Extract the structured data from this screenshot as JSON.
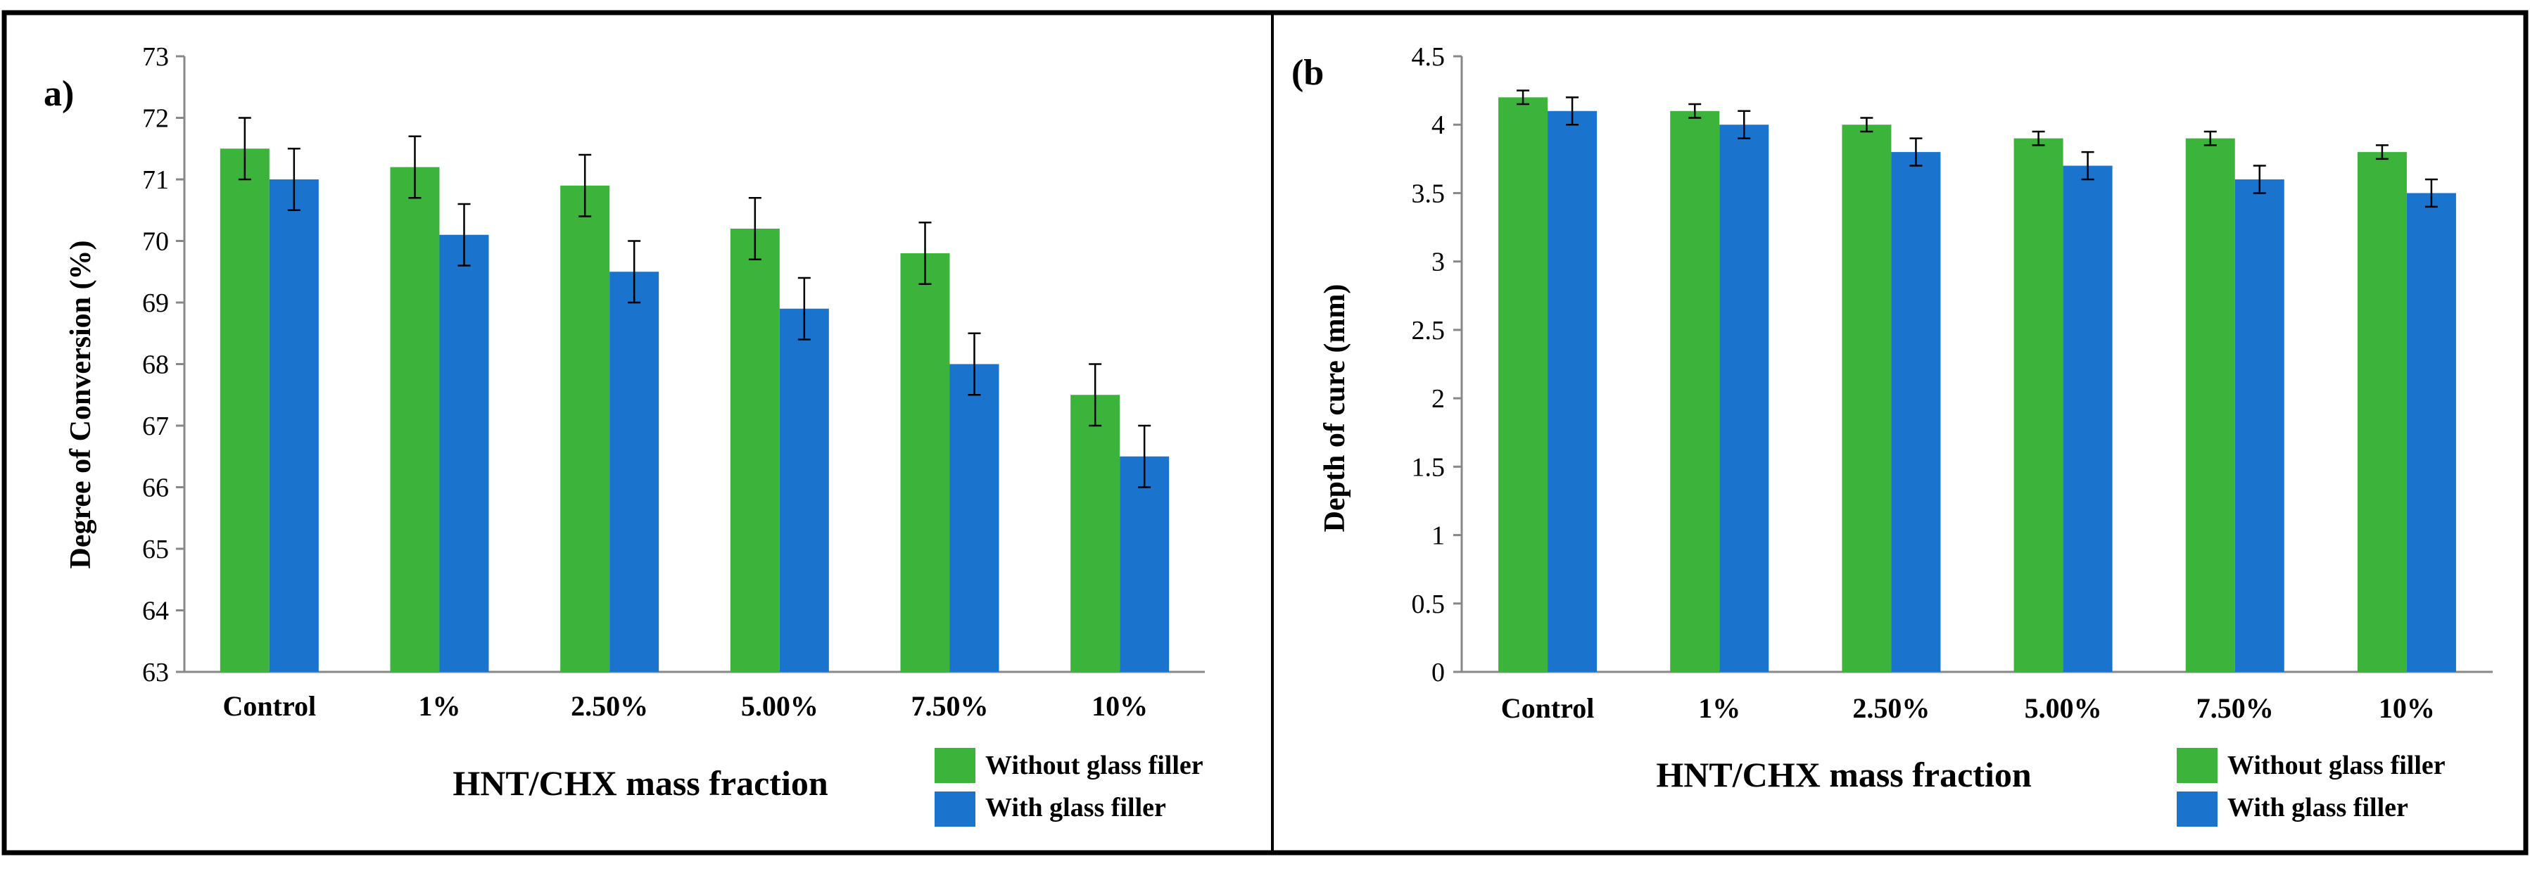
{
  "chart_data": [
    {
      "type": "bar",
      "panel_label": "a)",
      "categories": [
        "Control",
        "1%",
        "2.50%",
        "5.00%",
        "7.50%",
        "10%"
      ],
      "series": [
        {
          "name": "Without glass filler",
          "color": "#3cb43c",
          "values": [
            71.5,
            71.2,
            70.9,
            70.2,
            69.8,
            67.5
          ],
          "errors": [
            0.5,
            0.5,
            0.5,
            0.5,
            0.5,
            0.5
          ]
        },
        {
          "name": "With glass filler",
          "color": "#1a73cc",
          "values": [
            71.0,
            70.1,
            69.5,
            68.9,
            68.0,
            66.5
          ],
          "errors": [
            0.5,
            0.5,
            0.5,
            0.5,
            0.5,
            0.5
          ]
        }
      ],
      "xlabel": "HNT/CHX  mass fraction",
      "ylabel": "Degree of Conversion (%)",
      "ylim": [
        63,
        73
      ],
      "yticks": [
        "63",
        "64",
        "65",
        "66",
        "67",
        "68",
        "69",
        "70",
        "71",
        "72",
        "73"
      ],
      "legend_position": "bottom-right"
    },
    {
      "type": "bar",
      "panel_label": "(b",
      "categories": [
        "Control",
        "1%",
        "2.50%",
        "5.00%",
        "7.50%",
        "10%"
      ],
      "series": [
        {
          "name": "Without glass filler",
          "color": "#3cb43c",
          "values": [
            4.2,
            4.1,
            4.0,
            3.9,
            3.9,
            3.8
          ],
          "errors": [
            0.05,
            0.05,
            0.05,
            0.05,
            0.05,
            0.05
          ]
        },
        {
          "name": "With glass filler",
          "color": "#1a73cc",
          "values": [
            4.1,
            4.0,
            3.8,
            3.7,
            3.6,
            3.5
          ],
          "errors": [
            0.1,
            0.1,
            0.1,
            0.1,
            0.1,
            0.1
          ]
        }
      ],
      "xlabel": "HNT/CHX  mass fraction",
      "ylabel": "Depth of cure (mm)",
      "ylim": [
        0,
        4.5
      ],
      "yticks": [
        "0",
        "0.5",
        "1",
        "1.5",
        "2",
        "2.5",
        "3",
        "3.5",
        "4",
        "4.5"
      ],
      "legend_position": "bottom-right"
    }
  ]
}
